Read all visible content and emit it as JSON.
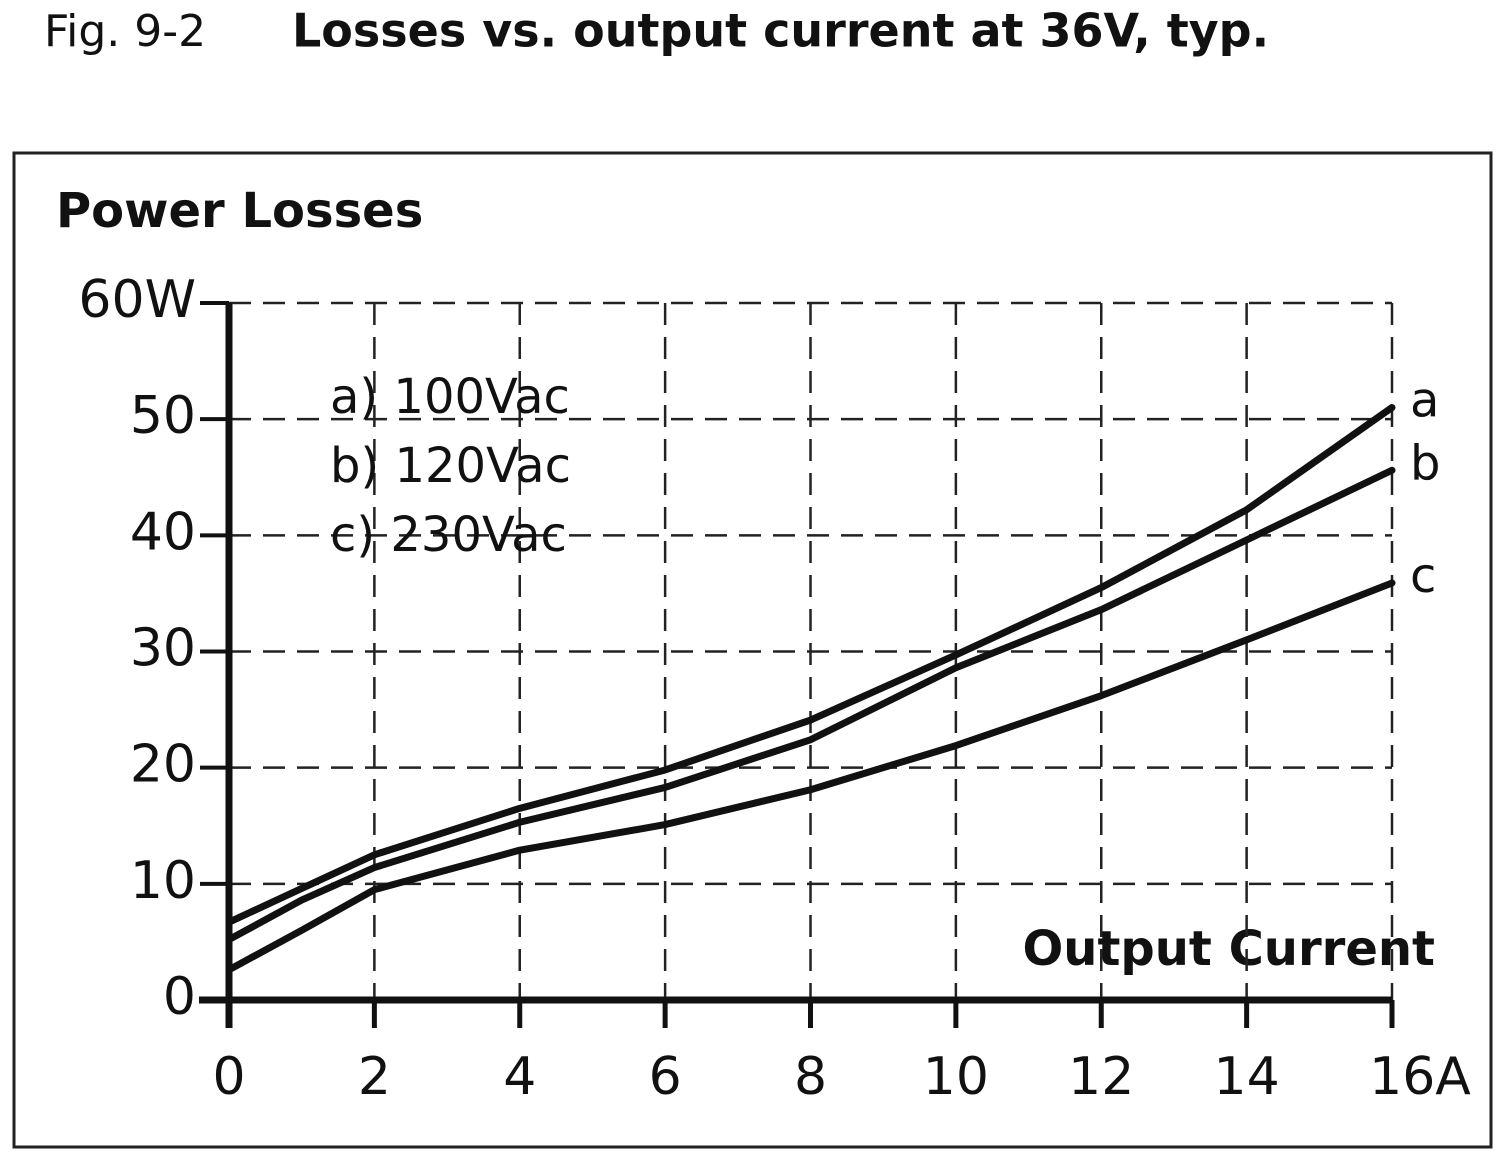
{
  "chart_data": {
    "type": "line",
    "figure_label": "Fig. 9-2",
    "title": "Losses vs. output current at 36V, typ.",
    "ylabel": "Power Losses",
    "xlabel": "Output Current",
    "x": [
      0,
      1,
      2,
      4,
      6,
      8,
      10,
      12,
      14,
      16
    ],
    "series": [
      {
        "name": "a) 100Vac",
        "label": "a",
        "color": "#111111",
        "values": [
          6.7,
          9.6,
          12.5,
          16.5,
          19.8,
          24.1,
          29.7,
          35.5,
          42.2,
          51
        ]
      },
      {
        "name": "b) 120Vac",
        "label": "b",
        "color": "#111111",
        "values": [
          5.2,
          8.6,
          11.4,
          15.3,
          18.3,
          22.4,
          28.6,
          33.6,
          39.6,
          45.6
        ]
      },
      {
        "name": "c) 230Vac",
        "label": "c",
        "color": "#111111",
        "values": [
          2.6,
          6.0,
          9.5,
          12.9,
          15.1,
          18.1,
          21.9,
          26.2,
          31,
          35.9
        ]
      }
    ],
    "xlim": [
      0,
      16
    ],
    "xticks": [
      0,
      2,
      4,
      6,
      8,
      10,
      12,
      14,
      {
        "value": 16,
        "label": "16A"
      }
    ],
    "ylim": [
      0,
      60
    ],
    "yticks": [
      0,
      10,
      20,
      30,
      40,
      50,
      {
        "value": 60,
        "label": "60W"
      }
    ],
    "grid": true
  }
}
